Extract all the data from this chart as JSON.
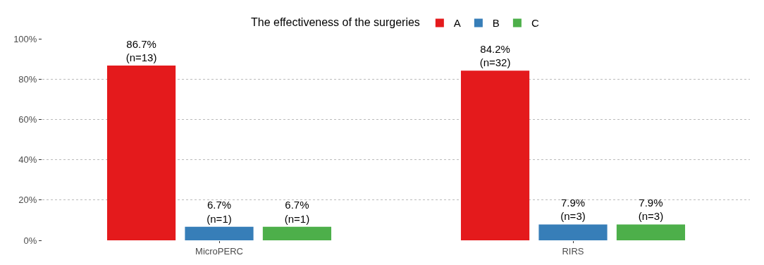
{
  "chart_data": {
    "type": "bar",
    "legend_title": "The effectiveness of the surgeries",
    "categories": [
      "MicroPERC",
      "RIRS"
    ],
    "series": [
      {
        "name": "A",
        "color": "#e41a1c",
        "values": [
          86.7,
          84.2
        ],
        "value_labels": [
          "86.7%\n(n=13)",
          "84.2%\n(n=32)"
        ]
      },
      {
        "name": "B",
        "color": "#377eb8",
        "values": [
          6.7,
          7.9
        ],
        "value_labels": [
          "6.7%\n(n=1)",
          "7.9%\n(n=3)"
        ]
      },
      {
        "name": "C",
        "color": "#4daf4a",
        "values": [
          6.7,
          7.9
        ],
        "value_labels": [
          "6.7%\n(n=1)",
          "7.9%\n(n=3)"
        ]
      }
    ],
    "ylim": [
      0,
      100
    ],
    "yticks": [
      {
        "value": 0,
        "label": "0%"
      },
      {
        "value": 20,
        "label": "20%"
      },
      {
        "value": 40,
        "label": "40%"
      },
      {
        "value": 60,
        "label": "60%"
      },
      {
        "value": 80,
        "label": "80%"
      },
      {
        "value": 100,
        "label": "100%"
      }
    ],
    "grid": "y",
    "legend": "top"
  }
}
